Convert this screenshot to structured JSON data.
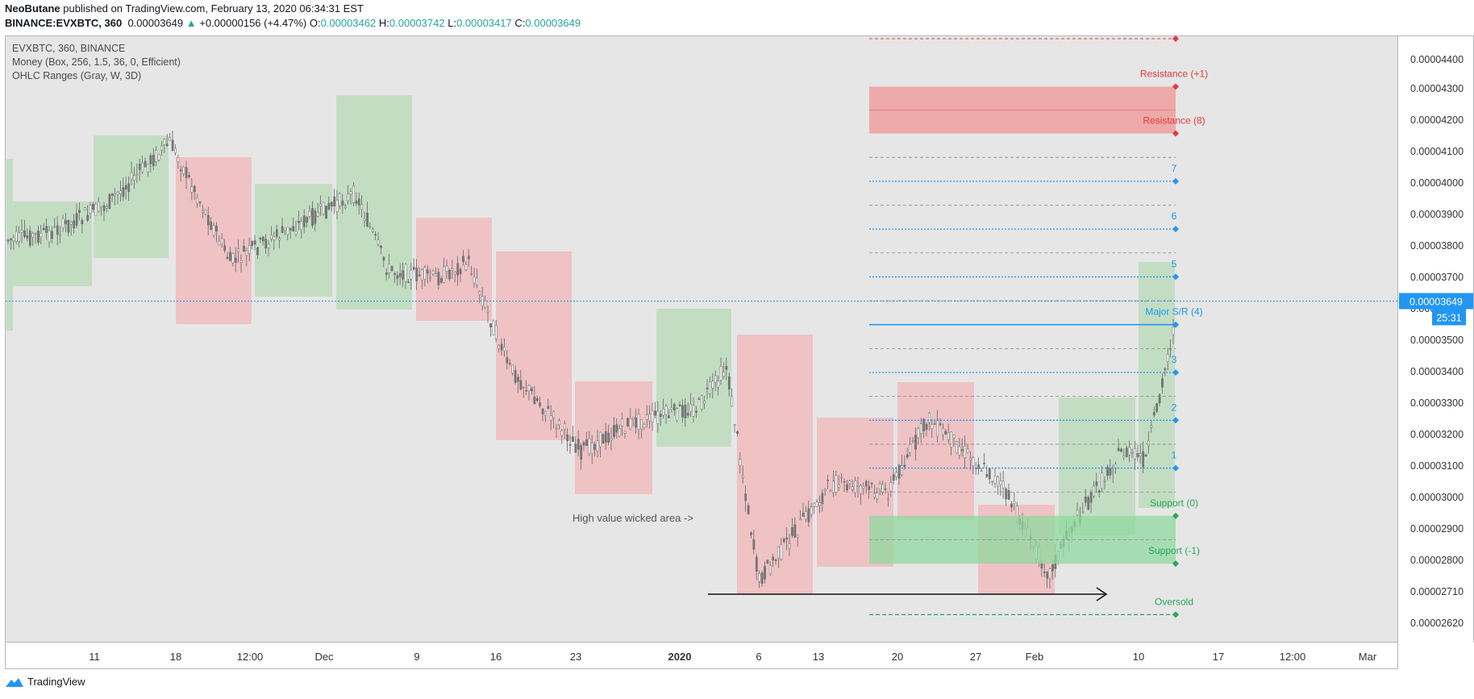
{
  "header": {
    "author": "NeoButane",
    "published_text": "published on TradingView.com, February 13, 2020 06:34:31 EST",
    "symbol": "BINANCE:EVXBTC, 360",
    "last": "0.00003649",
    "change_arrow": "▲",
    "change": "+0.00000156 (+4.47%)",
    "o_label": "O:",
    "o": "0.00003462",
    "h_label": "H:",
    "h": "0.00003742",
    "l_label": "L:",
    "l": "0.00003417",
    "c_label": "C:",
    "c": "0.00003649"
  },
  "legend": [
    "EVXBTC, 360, BINANCE",
    "Money (Box, 256, 1.5, 36, 0, Efficient)",
    "OHLC Ranges (Gray, W, 3D)"
  ],
  "footer": {
    "brand": "TradingView"
  },
  "colors": {
    "accent": "#2196f3",
    "up_box": "#b7d9b7",
    "down_box": "#f2b6b8",
    "resistance": "#e53935",
    "support": "#26a65b",
    "level": "#2196f3"
  },
  "chart_data": {
    "type": "candlestick",
    "y_unit": "BTC",
    "ylim": [
      2.58e-05,
      4.48e-05
    ],
    "yticks": [
      "0.00004400",
      "0.00004300",
      "0.00004200",
      "0.00004100",
      "0.00004000",
      "0.00003900",
      "0.00003800",
      "0.00003700",
      "0.00003600",
      "0.00003500",
      "0.00003400",
      "0.00003300",
      "0.00003200",
      "0.00003100",
      "0.00003000",
      "0.00002900",
      "0.00002800",
      "0.00002710",
      "0.00002620"
    ],
    "xticks": [
      "11",
      "18",
      "12:00",
      "Dec",
      "9",
      "16",
      "23",
      "2020",
      "6",
      "13",
      "20",
      "27",
      "Feb",
      "10",
      "17",
      "12:00",
      "Mar"
    ],
    "last_price_label": "0.00003649",
    "countdown_label": "25:31",
    "levels": [
      {
        "label": "Resistance (+1)",
        "value": 4.322e-05,
        "color": "#e53935",
        "style": "solid"
      },
      {
        "label": "Resistance (8)",
        "value": 4.175e-05,
        "color": "#e53935",
        "style": "solid"
      },
      {
        "label": "7",
        "value": 4.025e-05,
        "color": "#2196f3",
        "style": "dotted"
      },
      {
        "label": "6",
        "value": 3.875e-05,
        "color": "#2196f3",
        "style": "dotted"
      },
      {
        "label": "5",
        "value": 3.725e-05,
        "color": "#2196f3",
        "style": "dotted"
      },
      {
        "label": "Major S/R (4)",
        "value": 3.575e-05,
        "color": "#2196f3",
        "style": "solid"
      },
      {
        "label": "3",
        "value": 3.425e-05,
        "color": "#2196f3",
        "style": "dotted"
      },
      {
        "label": "2",
        "value": 3.275e-05,
        "color": "#2196f3",
        "style": "dotted"
      },
      {
        "label": "1",
        "value": 3.125e-05,
        "color": "#2196f3",
        "style": "dotted"
      },
      {
        "label": "Support (0)",
        "value": 2.975e-05,
        "color": "#26a65b",
        "style": "solid"
      },
      {
        "label": "Support (-1)",
        "value": 2.825e-05,
        "color": "#26a65b",
        "style": "solid"
      },
      {
        "label": "Oversold",
        "value": 2.665e-05,
        "color": "#26a65b",
        "style": "dashed"
      }
    ],
    "annotations": [
      {
        "text": "High value wicked area ->"
      }
    ]
  }
}
